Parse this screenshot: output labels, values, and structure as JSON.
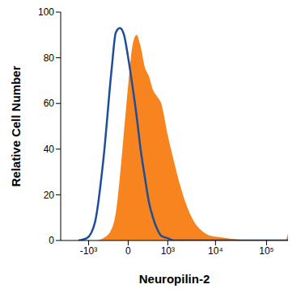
{
  "chart_data": {
    "type": "area",
    "x_label": "Neuropilin-2",
    "y_label": "Relative Cell Number",
    "x": [
      -1700,
      -1100,
      -700,
      -420,
      -225,
      -152,
      -92,
      -42,
      0,
      42,
      92,
      152,
      225,
      312,
      416,
      545,
      695,
      1000,
      1370,
      1840,
      2530,
      3750,
      5520,
      8100,
      11800,
      17200,
      25000,
      53000,
      133500,
      230000,
      262144
    ],
    "series": [
      {
        "type": "area",
        "color": "#f7841f",
        "values": [
          0,
          0,
          0,
          1,
          5,
          12,
          28,
          48,
          68,
          85,
          90,
          85,
          76,
          72,
          66,
          63,
          60,
          46,
          35,
          25,
          16,
          8,
          4,
          2,
          1.5,
          1,
          0.5,
          0,
          0,
          0,
          3
        ]
      },
      {
        "type": "line",
        "color": "#1f4e99",
        "values": [
          0,
          1,
          8,
          35,
          75,
          91,
          93,
          90,
          80,
          68,
          55,
          40,
          28,
          17,
          10,
          5,
          2,
          1,
          0,
          0,
          0,
          0,
          0,
          0,
          0,
          0,
          0,
          0,
          0,
          0,
          0
        ]
      }
    ],
    "xlim": [
      -4000,
      262144
    ],
    "ylim": [
      0,
      100
    ],
    "xticks": [
      {
        "value": -1000,
        "label": "-10³"
      },
      0,
      {
        "value": 1000,
        "label": "10³"
      },
      {
        "value": 10000,
        "label": "10⁴"
      },
      {
        "value": 100000,
        "label": "10⁵"
      }
    ],
    "yticks": [
      0,
      20,
      40,
      60,
      80,
      100
    ]
  }
}
